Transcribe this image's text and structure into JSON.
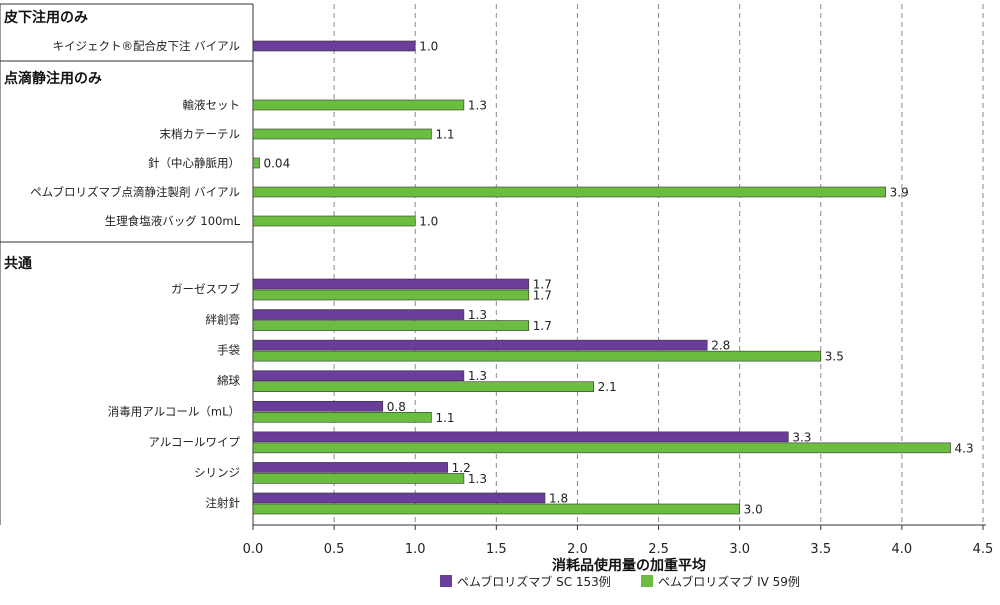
{
  "chart_data": {
    "type": "bar",
    "orientation": "horizontal",
    "xlabel": "消耗品使用量の加重平均",
    "xlim": [
      0,
      4.5
    ],
    "xticks": [
      "0.0",
      "0.5",
      "1.0",
      "1.5",
      "2.0",
      "2.5",
      "3.0",
      "3.5",
      "4.0",
      "4.5"
    ],
    "grid": "vertical dashed",
    "legend_position": "bottom",
    "series": [
      {
        "key": "sc",
        "name": "ペムブロリズマブ SC 153例",
        "color": "#6a3d9a"
      },
      {
        "key": "iv",
        "name": "ペムブロリズマブ IV 59例",
        "color": "#6bbd3f"
      }
    ],
    "groups": [
      {
        "title": "皮下注用のみ",
        "items": [
          {
            "label": "キイジェクト®配合皮下注 バイアル",
            "sc": 1.0,
            "sc_label": "1.0",
            "iv": null,
            "iv_label": null
          }
        ]
      },
      {
        "title": "点滴静注用のみ",
        "items": [
          {
            "label": "輸液セット",
            "sc": null,
            "sc_label": null,
            "iv": 1.3,
            "iv_label": "1.3"
          },
          {
            "label": "末梢カテーテル",
            "sc": null,
            "sc_label": null,
            "iv": 1.1,
            "iv_label": "1.1"
          },
          {
            "label": "針（中心静脈用）",
            "sc": null,
            "sc_label": null,
            "iv": 0.04,
            "iv_label": "0.04"
          },
          {
            "label": "ペムブロリズマブ点滴静注製剤 バイアル",
            "sc": null,
            "sc_label": null,
            "iv": 3.9,
            "iv_label": "3.9"
          },
          {
            "label": "生理食塩液バッグ 100mL",
            "sc": null,
            "sc_label": null,
            "iv": 1.0,
            "iv_label": "1.0"
          }
        ]
      },
      {
        "title": "共通",
        "items": [
          {
            "label": "ガーゼスワブ",
            "sc": 1.7,
            "sc_label": "1.7",
            "iv": 1.7,
            "iv_label": "1.7"
          },
          {
            "label": "絆創膏",
            "sc": 1.3,
            "sc_label": "1.3",
            "iv": 1.7,
            "iv_label": "1.7"
          },
          {
            "label": "手袋",
            "sc": 2.8,
            "sc_label": "2.8",
            "iv": 3.5,
            "iv_label": "3.5"
          },
          {
            "label": "綿球",
            "sc": 1.3,
            "sc_label": "1.3",
            "iv": 2.1,
            "iv_label": "2.1"
          },
          {
            "label": "消毒用アルコール（mL）",
            "sc": 0.8,
            "sc_label": "0.8",
            "iv": 1.1,
            "iv_label": "1.1"
          },
          {
            "label": "アルコールワイプ",
            "sc": 3.3,
            "sc_label": "3.3",
            "iv": 4.3,
            "iv_label": "4.3"
          },
          {
            "label": "シリンジ",
            "sc": 1.2,
            "sc_label": "1.2",
            "iv": 1.3,
            "iv_label": "1.3"
          },
          {
            "label": "注射針",
            "sc": 1.8,
            "sc_label": "1.8",
            "iv": 3.0,
            "iv_label": "3.0"
          }
        ]
      }
    ]
  }
}
